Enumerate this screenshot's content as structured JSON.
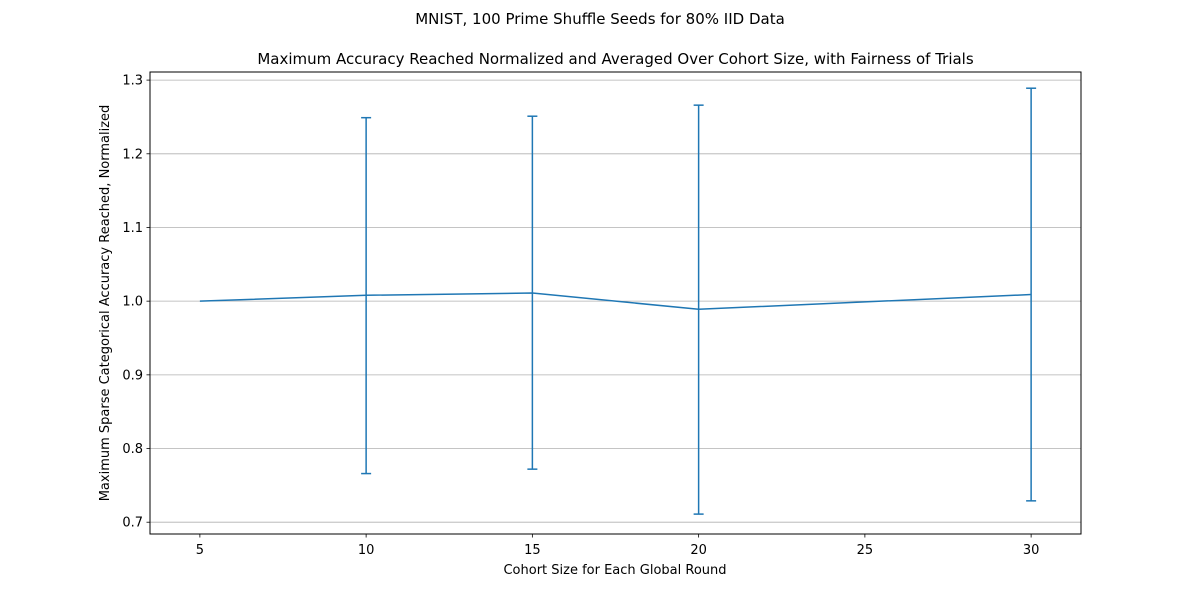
{
  "chart_data": {
    "type": "line",
    "suptitle": "MNIST, 100 Prime Shuffle Seeds for 80% IID Data",
    "title": "Maximum Accuracy Reached Normalized and Averaged Over Cohort Size, with Fairness of Trials",
    "xlabel": "Cohort Size for Each Global Round",
    "ylabel": "Maximum Sparse Categorical Accuracy Reached, Normalized",
    "xlim": [
      3.5,
      31.5
    ],
    "ylim": [
      0.684,
      1.311
    ],
    "xticks": [
      5,
      10,
      15,
      20,
      25,
      30
    ],
    "xtick_labels": [
      "5",
      "10",
      "15",
      "20",
      "25",
      "30"
    ],
    "yticks": [
      0.7,
      0.8,
      0.9,
      1.0,
      1.1,
      1.2,
      1.3
    ],
    "ytick_labels": [
      "0.7",
      "0.8",
      "0.9",
      "1.0",
      "1.1",
      "1.2",
      "1.3"
    ],
    "grid": "horizontal",
    "color": "#1f77b4",
    "series": [
      {
        "x": [
          5,
          10,
          15,
          20,
          25,
          30
        ],
        "y": [
          1.0,
          1.008,
          1.011,
          0.989,
          0.999,
          1.009
        ],
        "error_lower": [
          null,
          0.766,
          0.772,
          0.711,
          null,
          0.729
        ],
        "error_upper": [
          null,
          1.249,
          1.251,
          1.266,
          null,
          1.289
        ]
      }
    ]
  }
}
